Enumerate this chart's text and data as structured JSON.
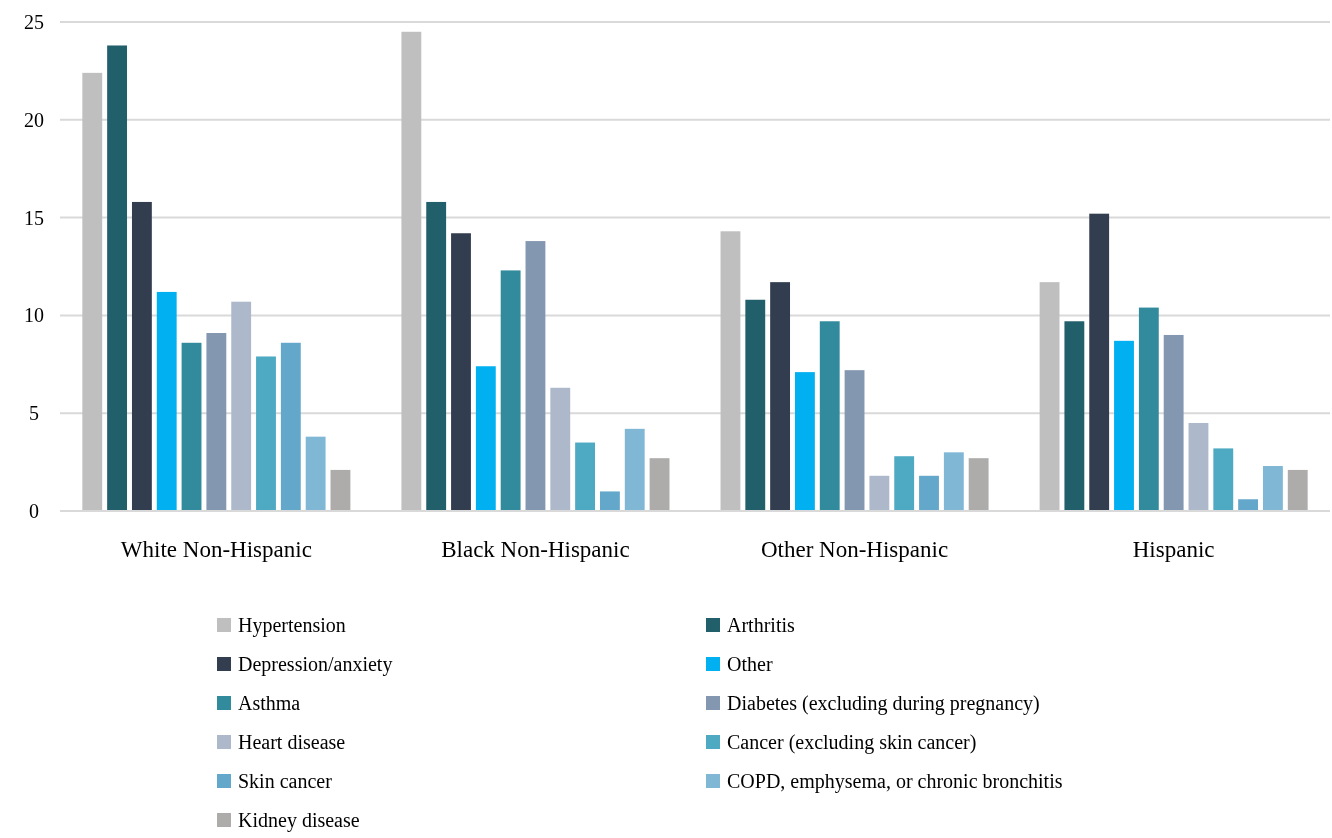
{
  "chart_data": {
    "type": "bar",
    "categories": [
      "White Non-Hispanic",
      "Black Non-Hispanic",
      "Other Non-Hispanic",
      "Hispanic"
    ],
    "series": [
      {
        "name": "Hypertension",
        "color": "#bfbfbf",
        "values": [
          22.4,
          24.5,
          14.3,
          11.7
        ]
      },
      {
        "name": "Arthritis",
        "color": "#215f6b",
        "values": [
          23.8,
          15.8,
          10.8,
          9.7
        ]
      },
      {
        "name": "Depression/anxiety",
        "color": "#323e4f",
        "values": [
          15.8,
          14.2,
          11.7,
          15.2
        ]
      },
      {
        "name": "Other",
        "color": "#00b0f0",
        "values": [
          11.2,
          7.4,
          7.1,
          8.7
        ]
      },
      {
        "name": "Asthma",
        "color": "#318b9c",
        "values": [
          8.6,
          12.3,
          9.7,
          10.4
        ]
      },
      {
        "name": "Diabetes (excluding during pregnancy)",
        "color": "#8497b0",
        "values": [
          9.1,
          13.8,
          7.2,
          9.0
        ]
      },
      {
        "name": "Heart disease",
        "color": "#adb9ca",
        "values": [
          10.7,
          6.3,
          1.8,
          4.5
        ]
      },
      {
        "name": "Cancer (excluding skin cancer)",
        "color": "#4ea9c2",
        "values": [
          7.9,
          3.5,
          2.8,
          3.2
        ]
      },
      {
        "name": "Skin cancer",
        "color": "#63a7ca",
        "values": [
          8.6,
          1.0,
          1.8,
          0.6
        ]
      },
      {
        "name": "COPD, emphysema, or chronic bronchitis",
        "color": "#7fb7d5",
        "values": [
          3.8,
          4.2,
          3.0,
          2.3
        ]
      },
      {
        "name": "Kidney disease",
        "color": "#aeabab",
        "values": [
          2.1,
          2.7,
          2.7,
          2.1
        ]
      }
    ],
    "ylim": [
      0,
      25
    ],
    "yticks": [
      0,
      5,
      10,
      15,
      20,
      25
    ],
    "grid": "y",
    "legend": "bottom"
  }
}
